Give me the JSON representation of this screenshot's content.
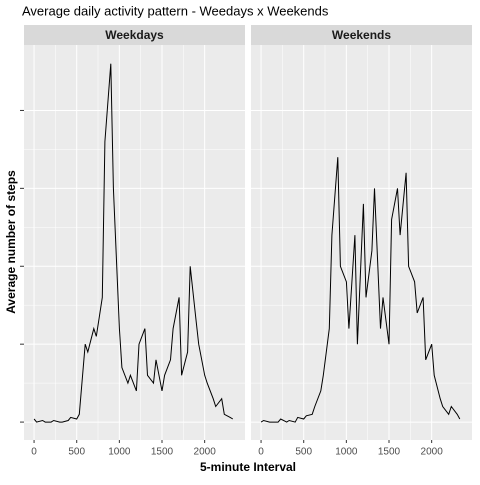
{
  "chart_data": {
    "type": "line",
    "title": "Average daily activity pattern - Weedays x Weekends",
    "x_label": "5-minute Interval",
    "y_label": "Average number of steps",
    "x": [
      0,
      30,
      100,
      130,
      200,
      230,
      300,
      330,
      400,
      430,
      500,
      530,
      600,
      630,
      700,
      730,
      800,
      830,
      900,
      930,
      1000,
      1030,
      1100,
      1130,
      1200,
      1230,
      1300,
      1330,
      1400,
      1430,
      1500,
      1530,
      1600,
      1630,
      1700,
      1730,
      1800,
      1830,
      1900,
      1930,
      2000,
      2030,
      2100,
      2130,
      2200,
      2230,
      2300,
      2330
    ],
    "xlim": [
      -118,
      2473
    ],
    "xticks": [
      0,
      500,
      1000,
      1500,
      2000
    ],
    "ylim": [
      -11.5,
      242
    ],
    "yticks": [
      0,
      50,
      100,
      150,
      200
    ],
    "grid": true,
    "series": [
      {
        "name": "Weekdays",
        "color": "#000000",
        "values": [
          2,
          0,
          1,
          0,
          0,
          1,
          0,
          0,
          1,
          3,
          2,
          5,
          50,
          45,
          60,
          55,
          80,
          180,
          230,
          150,
          60,
          35,
          25,
          30,
          20,
          50,
          60,
          30,
          25,
          40,
          20,
          30,
          40,
          60,
          80,
          30,
          45,
          100,
          65,
          50,
          30,
          25,
          15,
          10,
          15,
          5,
          3,
          2
        ]
      },
      {
        "name": "Weekends",
        "color": "#000000",
        "values": [
          0,
          1,
          0,
          0,
          0,
          2,
          0,
          1,
          0,
          3,
          2,
          4,
          5,
          10,
          20,
          30,
          60,
          120,
          170,
          100,
          90,
          60,
          120,
          50,
          140,
          80,
          110,
          150,
          60,
          80,
          50,
          130,
          150,
          120,
          160,
          100,
          90,
          70,
          80,
          40,
          50,
          30,
          15,
          10,
          5,
          10,
          5,
          2
        ]
      }
    ]
  }
}
